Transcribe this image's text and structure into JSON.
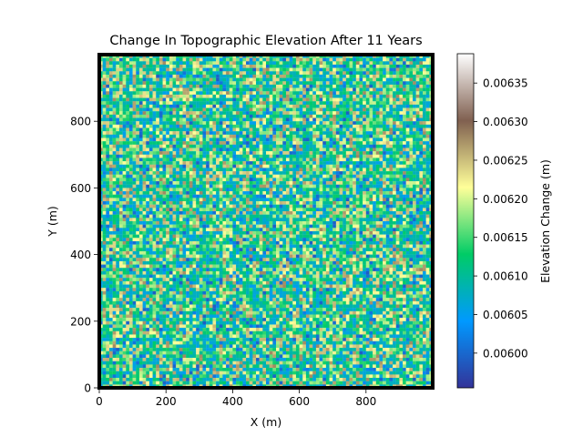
{
  "chart_data": {
    "type": "heatmap",
    "title": "Change In Topographic Elevation After 11 Years",
    "xlabel": "X (m)",
    "ylabel": "Y (m)",
    "xlim": [
      0,
      1000
    ],
    "ylim": [
      0,
      1000
    ],
    "x_ticks": [
      0,
      200,
      400,
      600,
      800
    ],
    "y_ticks": [
      0,
      200,
      400,
      600,
      800
    ],
    "grid_cells": 100,
    "colormap": "terrain",
    "colorbar": {
      "label": "Elevation Change (m)",
      "vmin": 0.005955,
      "vmax": 0.006388,
      "ticks": [
        "0.00600",
        "0.00605",
        "0.00610",
        "0.00615",
        "0.00620",
        "0.00625",
        "0.00630",
        "0.00635"
      ]
    },
    "value_distribution_note": "values vary randomly per cell, mostly 0.00603–0.00628"
  },
  "colors": {
    "terrain_stops": [
      "#333399",
      "#0099ff",
      "#00cc66",
      "#ffff99",
      "#806050",
      "#ffffff"
    ],
    "frame": "#000000"
  }
}
